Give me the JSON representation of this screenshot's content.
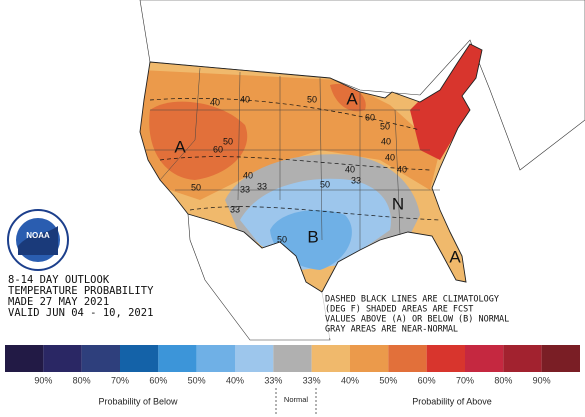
{
  "title_block": {
    "lines": [
      "8-14 DAY OUTLOOK",
      "TEMPERATURE PROBABILITY",
      "MADE  27 MAY 2021",
      "VALID  JUN 04 - 10, 2021"
    ]
  },
  "note_block": {
    "lines": [
      "DASHED BLACK LINES ARE CLIMATOLOGY",
      "(DEG F) SHADED AREAS ARE FCST",
      "VALUES ABOVE (A) OR BELOW (B) NORMAL",
      "GRAY AREAS ARE NEAR-NORMAL"
    ]
  },
  "logo": {
    "label": "NOAA"
  },
  "map_labels": [
    "A",
    "A",
    "A",
    "N",
    "B",
    "40",
    "40",
    "50",
    "50",
    "60",
    "40",
    "50",
    "60",
    "50",
    "40",
    "33",
    "33",
    "40",
    "33",
    "40",
    "50",
    "40",
    "50",
    "33"
  ],
  "legend": {
    "labels": [
      "90%",
      "80%",
      "70%",
      "60%",
      "50%",
      "40%",
      "33%",
      "33%",
      "40%",
      "50%",
      "60%",
      "70%",
      "80%",
      "90%"
    ],
    "colors": [
      "#221a45",
      "#2a2764",
      "#2e3f7c",
      "#1462a8",
      "#3c95d9",
      "#6fb0e6",
      "#9dc6ec",
      "#b0b0b0",
      "#f0b96c",
      "#eb9a4b",
      "#e2703a",
      "#d8352d",
      "#c52840",
      "#a2222f",
      "#7a1e25"
    ],
    "below_title": "Probability of Below",
    "normal_title": "Normal",
    "above_title": "Probability of Above"
  }
}
